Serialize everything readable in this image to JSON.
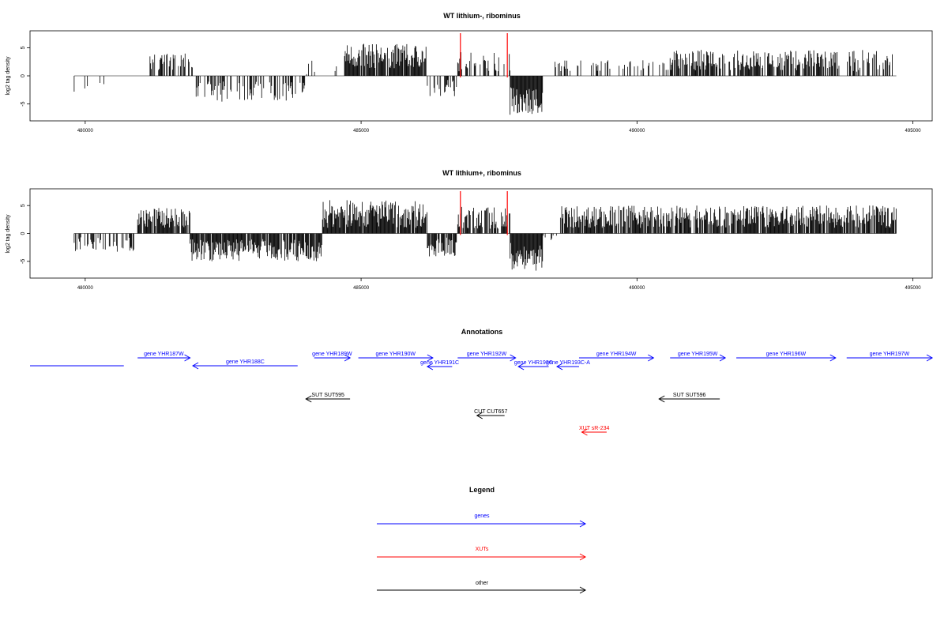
{
  "panels": [
    {
      "title": "WT lithium-, ribominus",
      "ylabel": "log2 tag density",
      "yticks": [
        "-5",
        "0",
        "5"
      ],
      "xticks": [
        "480000",
        "485000",
        "490000",
        "495000"
      ],
      "highlight_positions": [
        486800,
        487650
      ],
      "highlight_color": "#ff0000"
    },
    {
      "title": "WT lithium+, ribominus",
      "ylabel": "log2 tag density",
      "yticks": [
        "-5",
        "0",
        "5"
      ],
      "xticks": [
        "480000",
        "485000",
        "490000",
        "495000"
      ],
      "highlight_positions": [
        486800,
        487650
      ],
      "highlight_color": "#ff0000"
    }
  ],
  "chart_data": [
    {
      "type": "bar",
      "title": "WT lithium-, ribominus",
      "xlabel": "",
      "ylabel": "log2 tag density",
      "xlim": [
        479000,
        495350
      ],
      "ylim": [
        -8,
        8
      ],
      "grid": false,
      "segments": [
        {
          "start": 479800,
          "end": 480700,
          "sign": -1,
          "mean": 1.8,
          "amp": 1.2,
          "density": 0.15
        },
        {
          "start": 481150,
          "end": 481950,
          "sign": 1,
          "mean": 2.5,
          "amp": 1.5,
          "density": 0.55
        },
        {
          "start": 481950,
          "end": 484000,
          "sign": -1,
          "mean": 2.8,
          "amp": 1.8,
          "density": 0.5
        },
        {
          "start": 484000,
          "end": 484700,
          "sign": 1,
          "mean": 1.5,
          "amp": 1.2,
          "density": 0.12
        },
        {
          "start": 484700,
          "end": 486200,
          "sign": 1,
          "mean": 3.5,
          "amp": 2.2,
          "density": 0.85
        },
        {
          "start": 486200,
          "end": 486750,
          "sign": -1,
          "mean": 2.2,
          "amp": 1.5,
          "density": 0.45
        },
        {
          "start": 486750,
          "end": 487700,
          "sign": 1,
          "mean": 2.6,
          "amp": 1.8,
          "density": 0.45
        },
        {
          "start": 487700,
          "end": 488300,
          "sign": -1,
          "mean": 4.5,
          "amp": 2.5,
          "density": 1.0
        },
        {
          "start": 488500,
          "end": 490600,
          "sign": 1,
          "mean": 1.8,
          "amp": 1.0,
          "density": 0.3
        },
        {
          "start": 490600,
          "end": 493700,
          "sign": 1,
          "mean": 2.8,
          "amp": 1.8,
          "density": 0.75
        },
        {
          "start": 493800,
          "end": 494650,
          "sign": 1,
          "mean": 2.6,
          "amp": 2.0,
          "density": 0.55
        }
      ]
    },
    {
      "type": "bar",
      "title": "WT lithium+, ribominus",
      "xlabel": "",
      "ylabel": "log2 tag density",
      "xlim": [
        479000,
        495350
      ],
      "ylim": [
        -8,
        8
      ],
      "grid": false,
      "segments": [
        {
          "start": 479800,
          "end": 480900,
          "sign": -1,
          "mean": 2.0,
          "amp": 1.3,
          "density": 0.45
        },
        {
          "start": 480950,
          "end": 481900,
          "sign": 1,
          "mean": 2.8,
          "amp": 1.8,
          "density": 0.85
        },
        {
          "start": 481900,
          "end": 484300,
          "sign": -1,
          "mean": 3.0,
          "amp": 2.0,
          "density": 0.9
        },
        {
          "start": 484300,
          "end": 486200,
          "sign": 1,
          "mean": 3.5,
          "amp": 2.5,
          "density": 0.95
        },
        {
          "start": 486200,
          "end": 486750,
          "sign": -1,
          "mean": 2.5,
          "amp": 1.8,
          "density": 0.7
        },
        {
          "start": 486750,
          "end": 487700,
          "sign": 1,
          "mean": 2.8,
          "amp": 2.0,
          "density": 0.7
        },
        {
          "start": 487700,
          "end": 488300,
          "sign": -1,
          "mean": 4.2,
          "amp": 2.5,
          "density": 1.0
        },
        {
          "start": 488300,
          "end": 488600,
          "sign": -1,
          "mean": 0.8,
          "amp": 0.5,
          "density": 0.1
        },
        {
          "start": 488600,
          "end": 494700,
          "sign": 1,
          "mean": 3.0,
          "amp": 2.0,
          "density": 0.85
        }
      ]
    }
  ],
  "annotations": {
    "title": "Annotations",
    "xlim": [
      479000,
      495350
    ],
    "colors": {
      "gene": "#0000ff",
      "xut": "#ff0000",
      "other": "#000000"
    },
    "features": [
      {
        "label": "",
        "start": 479000,
        "end": 480700,
        "strand": "+",
        "kind": "gene",
        "row": 1
      },
      {
        "label": "gene YHR187W",
        "start": 480950,
        "end": 481900,
        "strand": "+",
        "kind": "gene",
        "row": 0
      },
      {
        "label": "gene YHR188C",
        "start": 481950,
        "end": 483850,
        "strand": "-",
        "kind": "gene",
        "row": 1
      },
      {
        "label": "gene YHR189W",
        "start": 484150,
        "end": 484800,
        "strand": "+",
        "kind": "gene",
        "row": 0
      },
      {
        "label": "gene YHR190W",
        "start": 484950,
        "end": 486300,
        "strand": "+",
        "kind": "gene",
        "row": 0
      },
      {
        "label": "gene YHR191C",
        "start": 486200,
        "end": 486650,
        "strand": "-",
        "kind": "gene",
        "row": 0.5
      },
      {
        "label": "gene YHR192W",
        "start": 486750,
        "end": 487800,
        "strand": "+",
        "kind": "gene",
        "row": 0
      },
      {
        "label": "gene YHR193C",
        "start": 487850,
        "end": 488400,
        "strand": "-",
        "kind": "gene",
        "row": 0.5
      },
      {
        "label": "gene YHR193C-A",
        "start": 488550,
        "end": 488950,
        "strand": "-",
        "kind": "gene",
        "row": 0.5
      },
      {
        "label": "gene YHR194W",
        "start": 488950,
        "end": 490300,
        "strand": "+",
        "kind": "gene",
        "row": 0
      },
      {
        "label": "gene YHR195W",
        "start": 490600,
        "end": 491600,
        "strand": "+",
        "kind": "gene",
        "row": 0
      },
      {
        "label": "gene YHR196W",
        "start": 491800,
        "end": 493600,
        "strand": "+",
        "kind": "gene",
        "row": 0
      },
      {
        "label": "gene YHR197W",
        "start": 493800,
        "end": 495350,
        "strand": "+",
        "kind": "gene",
        "row": 0
      },
      {
        "label": "SUT SUT595",
        "start": 484000,
        "end": 484800,
        "strand": "-",
        "kind": "other",
        "row": 2
      },
      {
        "label": "SUT SUT596",
        "start": 490400,
        "end": 491500,
        "strand": "-",
        "kind": "other",
        "row": 2
      },
      {
        "label": "CUT CUT657",
        "start": 487100,
        "end": 487600,
        "strand": "-",
        "kind": "other",
        "row": 3
      },
      {
        "label": "XUT sR-234",
        "start": 489000,
        "end": 489450,
        "strand": "-",
        "kind": "xut",
        "row": 4
      }
    ]
  },
  "legend": {
    "title": "Legend",
    "items": [
      {
        "label": "genes",
        "color": "#0000ff"
      },
      {
        "label": "XUTs",
        "color": "#ff0000"
      },
      {
        "label": "other",
        "color": "#000000"
      }
    ]
  }
}
